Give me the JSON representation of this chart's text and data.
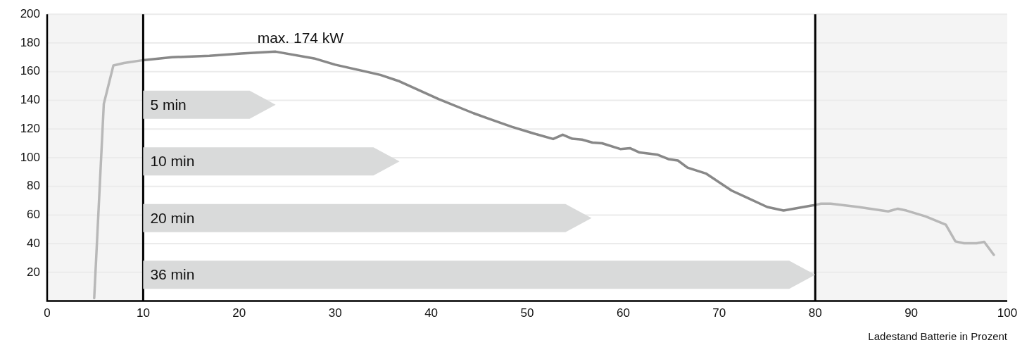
{
  "chart_data": [
    {
      "type": "line",
      "xlabel": "Ladestand Batterie in Prozent",
      "xlim": [
        0,
        100
      ],
      "xticks": [
        0,
        10,
        20,
        30,
        40,
        50,
        60,
        70,
        80,
        90,
        100
      ],
      "ylim": [
        0,
        200
      ],
      "yticks": [
        20,
        40,
        60,
        80,
        100,
        120,
        140,
        160,
        180,
        200
      ],
      "grid": "y",
      "legend": false,
      "marker": "none",
      "line_style": "solid",
      "series": [
        {
          "color": "#b8b8b8",
          "x": [
            4.9,
            5.9,
            6.9,
            8,
            10
          ],
          "values": [
            2,
            137.5,
            164.3,
            166,
            168
          ]
        },
        {
          "color": "#888888",
          "x": [
            10,
            13,
            16.9,
            20.2,
            23.8,
            27.8,
            30,
            34.7,
            36.7,
            40.8,
            44.4,
            45.9,
            48.4,
            50.6,
            52.7,
            53.7,
            54.7,
            55.7,
            56.8,
            57.8,
            59.7,
            60.7,
            61.7,
            63.6,
            64.7,
            65.7,
            66.7,
            68.6,
            71.3,
            72.8,
            75,
            76.7,
            79.5,
            80
          ],
          "values": [
            168,
            170,
            171,
            172.6,
            173.9,
            169.2,
            164.8,
            157.7,
            153.2,
            140.8,
            131,
            127.4,
            121.5,
            117,
            113,
            116,
            113.2,
            112.6,
            110.5,
            110,
            106,
            106.6,
            103.6,
            102,
            99,
            98,
            93,
            89,
            77,
            72.4,
            65.6,
            63.1,
            66.4,
            67
          ]
        },
        {
          "color": "#b8b8b8",
          "x": [
            80,
            80.6,
            81.6,
            84.5,
            87.6,
            88.6,
            89.5,
            91.5,
            93.6,
            94.6,
            95.5,
            96.8,
            97.6,
            98.6
          ],
          "values": [
            67,
            67.9,
            67.9,
            65.6,
            62.5,
            64.4,
            63.1,
            59,
            53.2,
            41.6,
            40.3,
            40.3,
            41.3,
            32.2
          ]
        }
      ],
      "bands": [
        {
          "axis": "x",
          "from": 0,
          "to": 10,
          "color": "#f4f4f4"
        },
        {
          "axis": "x",
          "from": 80,
          "to": 100,
          "color": "#f4f4f4"
        }
      ],
      "ref_lines": [
        {
          "axis": "x",
          "value": 10,
          "color": "#000000"
        },
        {
          "axis": "x",
          "value": 80,
          "color": "#000000"
        }
      ],
      "annotations": [
        {
          "text": "max. 174 kW",
          "x": 23.8,
          "y": 173.9
        }
      ]
    },
    {
      "type": "bar",
      "orientation": "horizontal",
      "categories": [
        "5 min",
        "10 min",
        "20 min",
        "36 min"
      ],
      "base": [
        10,
        10,
        10,
        10
      ],
      "values": [
        13.8,
        26.7,
        46.7,
        70
      ],
      "color": "#d9dada",
      "xlim": [
        0,
        100
      ],
      "xticks": [
        0,
        10,
        20,
        30,
        40,
        50,
        60,
        70,
        80,
        90,
        100
      ],
      "tick_labels": "y"
    }
  ]
}
